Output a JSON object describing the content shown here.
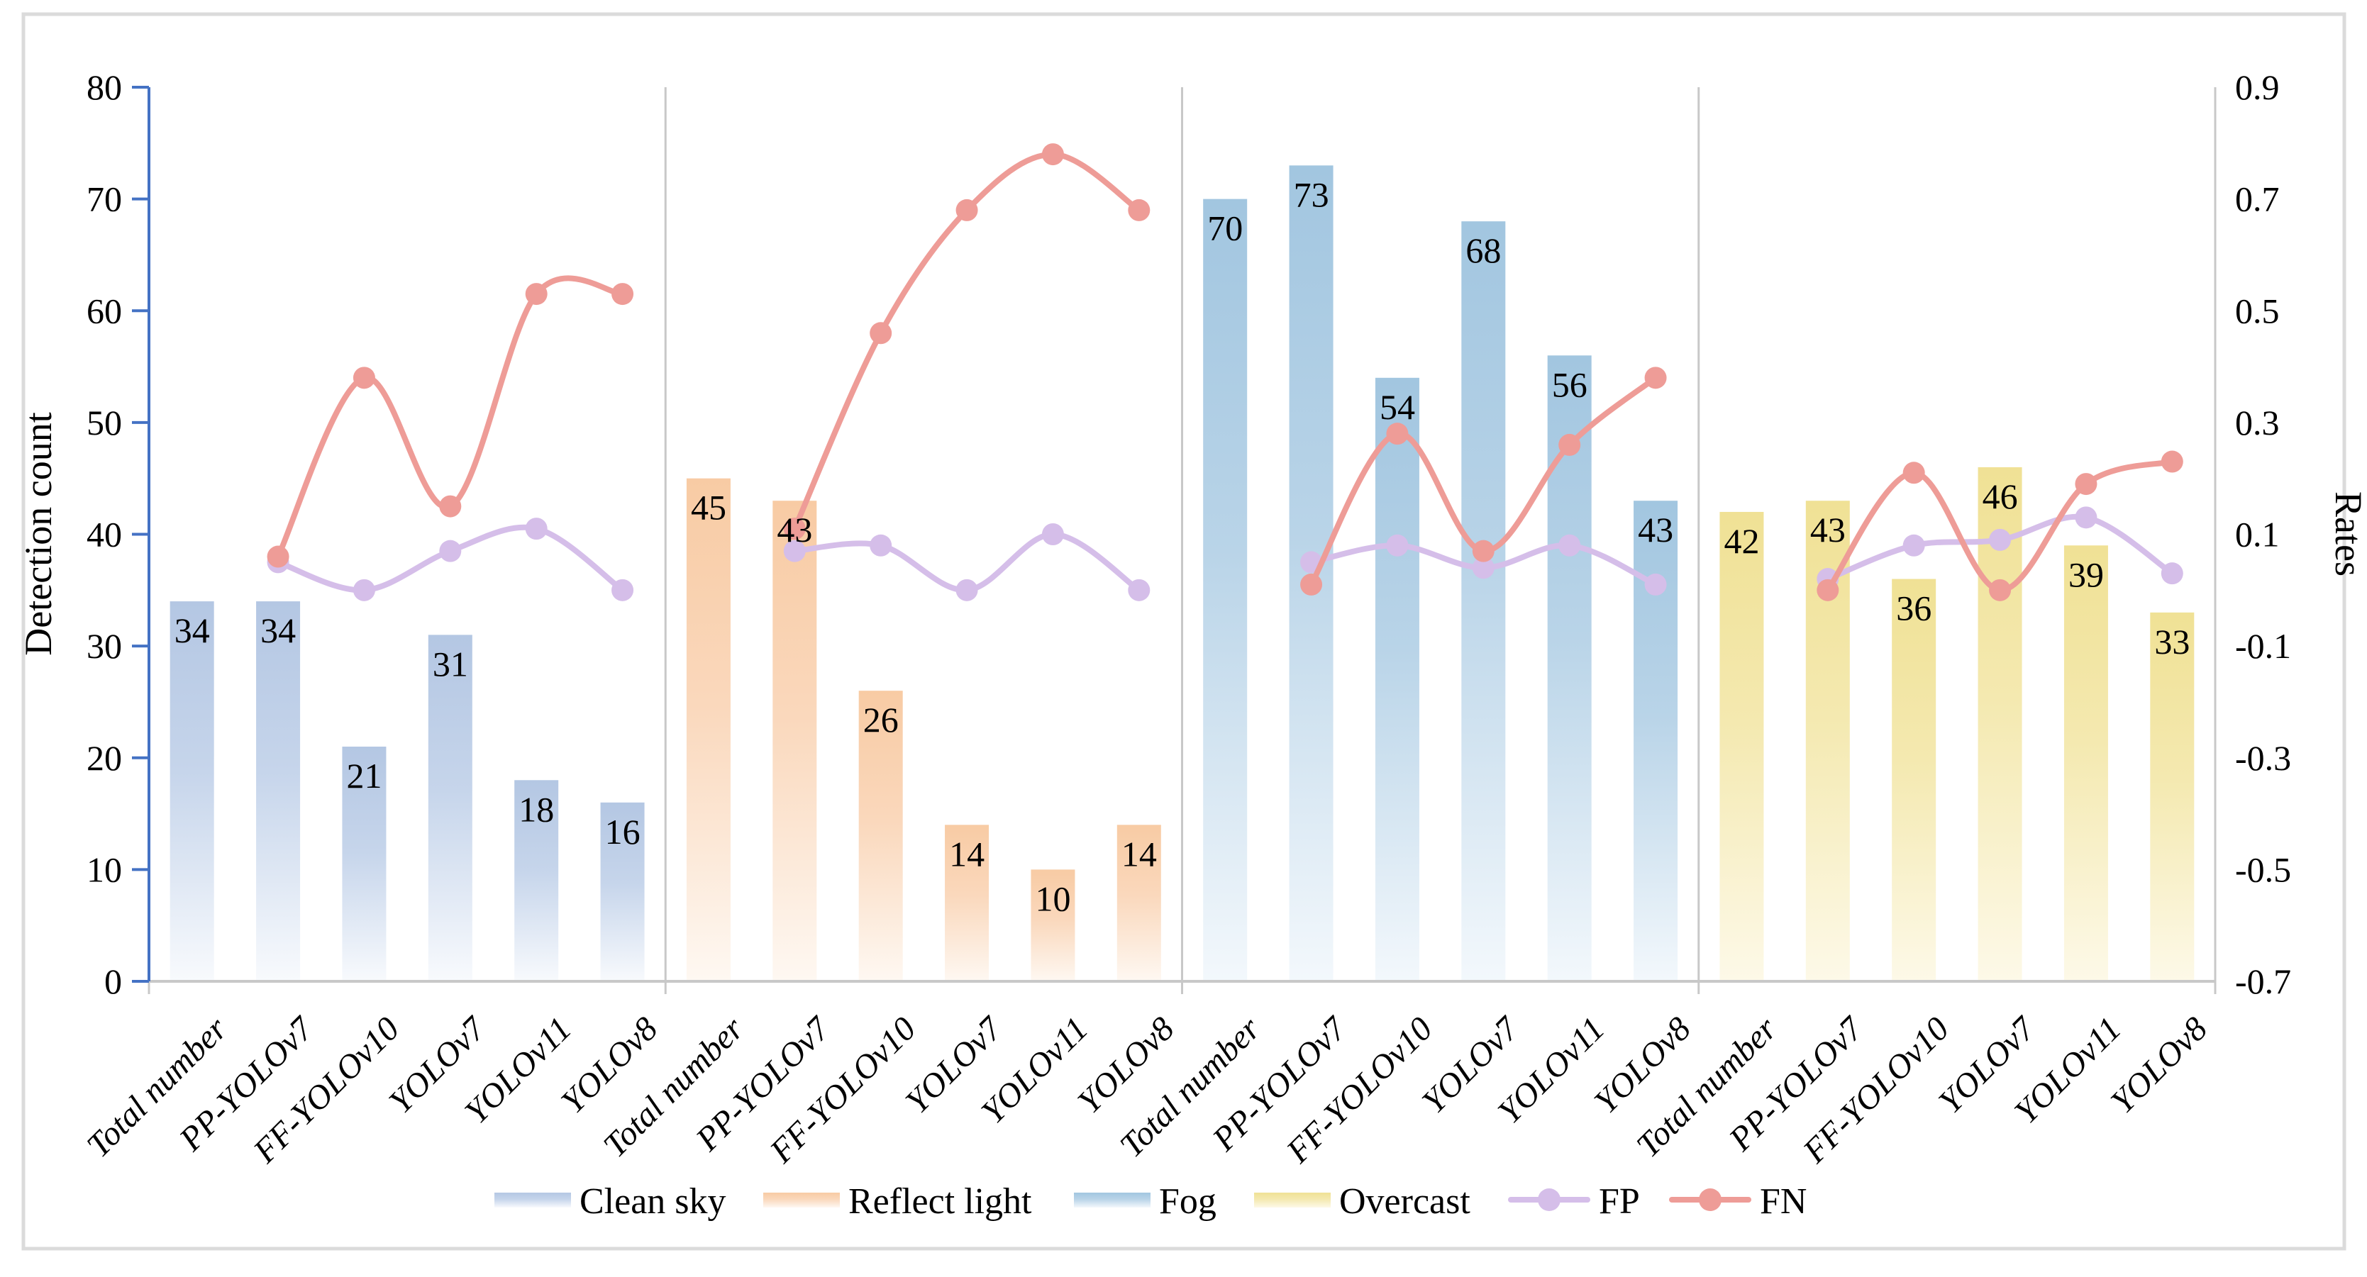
{
  "figure": {
    "frame_color": "#DBDBDB",
    "background": "#FFFFFF",
    "left_axis": {
      "title": "Detection count",
      "color": "#4472C4",
      "min": 0,
      "max": 80,
      "ticks": [
        0,
        10,
        20,
        30,
        40,
        50,
        60,
        70,
        80
      ]
    },
    "right_axis": {
      "title": "Rates",
      "color": "#C8C8C8",
      "min": -0.7,
      "max": 0.9,
      "ticks": [
        {
          "label": "0.9",
          "value": 0.9
        },
        {
          "label": "0.7",
          "value": 0.7
        },
        {
          "label": "0.5",
          "value": 0.5
        },
        {
          "label": "0.3",
          "value": 0.3
        },
        {
          "label": "0.1",
          "value": 0.1
        },
        {
          "label": "-0.1",
          "value": -0.1
        },
        {
          "label": "-0.3",
          "value": -0.3
        },
        {
          "label": "-0.5",
          "value": -0.5
        },
        {
          "label": "-0.7",
          "value": -0.7
        }
      ]
    },
    "x_axis_color": "#C8C8C8",
    "group_separator_color": "#C8C8C8"
  },
  "chart_data": {
    "type": "bar",
    "subtype": "bar-line-combo",
    "title": "",
    "xlabel": "",
    "ylabel_left": "Detection count",
    "ylabel_right": "Rates",
    "ylim_left": [
      0,
      80
    ],
    "ylim_right": [
      -0.7,
      0.9
    ],
    "grid": false,
    "legend_position": "bottom",
    "categories": [
      "Total number",
      "PP-YOLOv7",
      "FF-YOLOv10",
      "YOLOv7",
      "YOLOv11",
      "YOLOv8"
    ],
    "groups": [
      {
        "condition": "Clean sky",
        "bar_color_top": "#B4C7E3",
        "bar_color_mid": "#C6D5EB",
        "bar_color_bottom": "#F8FAFD",
        "bars": [
          34,
          34,
          21,
          31,
          18,
          16
        ],
        "fp_rates": [
          null,
          0.05,
          0.0,
          0.07,
          0.11,
          0.0
        ],
        "fn_rates": [
          null,
          0.06,
          0.38,
          0.15,
          0.53,
          0.53
        ]
      },
      {
        "condition": "Reflect light",
        "bar_color_top": "#F8CBA4",
        "bar_color_mid": "#FAD8BC",
        "bar_color_bottom": "#FEF8F2",
        "bars": [
          45,
          43,
          26,
          14,
          10,
          14
        ],
        "fp_rates": [
          null,
          0.07,
          0.08,
          0.0,
          0.1,
          0.0
        ],
        "fn_rates": [
          null,
          0.11,
          0.46,
          0.68,
          0.78,
          0.68
        ]
      },
      {
        "condition": "Fog",
        "bar_color_top": "#A2C6E0",
        "bar_color_mid": "#B9D4E8",
        "bar_color_bottom": "#F3F8FC",
        "bars": [
          70,
          73,
          54,
          68,
          56,
          43
        ],
        "fp_rates": [
          null,
          0.05,
          0.08,
          0.04,
          0.08,
          0.01
        ],
        "fn_rates": [
          null,
          0.01,
          0.28,
          0.07,
          0.26,
          0.38
        ]
      },
      {
        "condition": "Overcast",
        "bar_color_top": "#F0E195",
        "bar_color_mid": "#F4E9B0",
        "bar_color_bottom": "#FDF9E8",
        "bars": [
          42,
          43,
          36,
          46,
          39,
          33
        ],
        "fp_rates": [
          null,
          0.02,
          0.08,
          0.09,
          0.13,
          0.03
        ],
        "fn_rates": [
          null,
          0.0,
          0.21,
          0.0,
          0.19,
          0.23
        ]
      }
    ],
    "line_series": [
      {
        "name": "FP",
        "color": "#D5BEE9"
      },
      {
        "name": "FN",
        "color": "#EE9C97"
      }
    ]
  },
  "legend": {
    "items": [
      {
        "label": "Clean sky",
        "type": "swatch",
        "group_index": 0
      },
      {
        "label": "Reflect light",
        "type": "swatch",
        "group_index": 1
      },
      {
        "label": "Fog",
        "type": "swatch",
        "group_index": 2
      },
      {
        "label": "Overcast",
        "type": "swatch",
        "group_index": 3
      },
      {
        "label": "FP",
        "type": "line-marker",
        "series_index": 0
      },
      {
        "label": "FN",
        "type": "line-marker",
        "series_index": 1
      }
    ]
  }
}
